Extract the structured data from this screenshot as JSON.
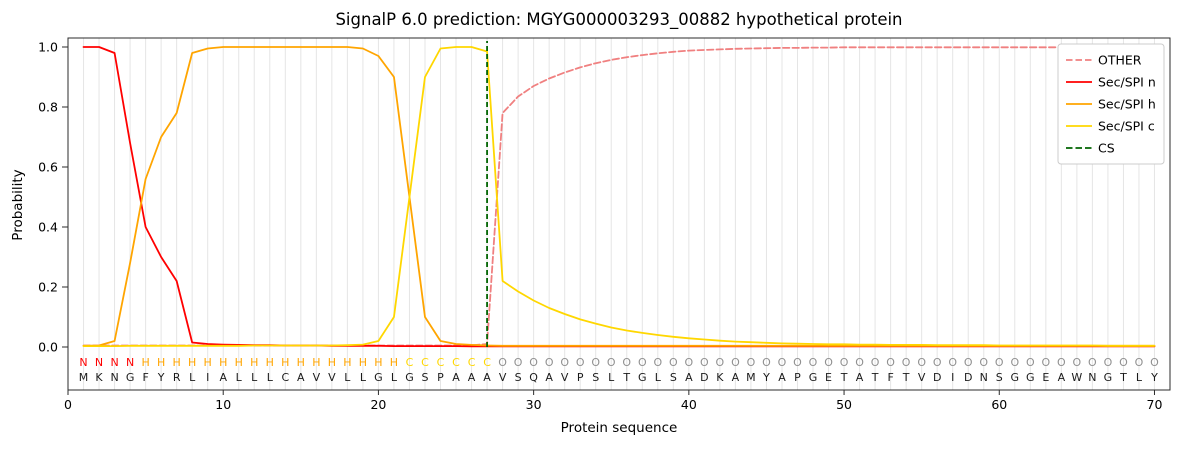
{
  "chart_data": {
    "type": "line",
    "title": "SignalP 6.0 prediction: MGYG000003293_00882 hypothetical protein",
    "xlabel": "Protein sequence",
    "ylabel": "Probability",
    "xlim": [
      0,
      71
    ],
    "ylim": [
      0.0,
      1.0
    ],
    "xticks": [
      0,
      10,
      20,
      30,
      40,
      50,
      60,
      70
    ],
    "yticks": [
      0.0,
      0.2,
      0.4,
      0.6,
      0.8,
      1.0
    ],
    "grid": "vertical line per residue, light gray",
    "legend_position": "upper right",
    "x_start": 1,
    "sequence": "MKNGFYRLIALLLCAVVLLGLGSPAAAVSQAVPSLTGLSADKAMYAPGETATFTVDIDNSGGEAWNGTLY",
    "regions": "NNNNHHHHHHHHHHHHHHHHHCCCCCCOOOOOOOOOOOOOOOOOOOOOOOOOOOOOOOOOOOOOOOOOOO",
    "region_colors": {
      "N": "#ff0000",
      "H": "#ffa500",
      "C": "#ffd700",
      "O": "#909090"
    },
    "sequence_color": "#1a1a1a",
    "grid_color": "#e5e5e5",
    "frame_color": "#2b2b2b",
    "series": [
      {
        "name": "OTHER",
        "color": "#f08080",
        "dash": true,
        "values": [
          0.005,
          0.005,
          0.005,
          0.005,
          0.005,
          0.005,
          0.005,
          0.005,
          0.005,
          0.005,
          0.005,
          0.005,
          0.005,
          0.005,
          0.005,
          0.005,
          0.005,
          0.005,
          0.005,
          0.005,
          0.005,
          0.005,
          0.005,
          0.005,
          0.005,
          0.006,
          0.01,
          0.78,
          0.835,
          0.87,
          0.895,
          0.915,
          0.932,
          0.946,
          0.957,
          0.966,
          0.973,
          0.979,
          0.984,
          0.988,
          0.99,
          0.992,
          0.994,
          0.995,
          0.996,
          0.997,
          0.997,
          0.998,
          0.998,
          0.999,
          0.999,
          0.999,
          0.999,
          0.999,
          0.999,
          0.999,
          0.999,
          0.999,
          0.999,
          0.999,
          0.999,
          0.999,
          0.999,
          0.999,
          0.999,
          0.999,
          0.999,
          0.999,
          0.999,
          0.999
        ]
      },
      {
        "name": "Sec/SPI n",
        "color": "#ff0000",
        "dash": false,
        "values": [
          1.0,
          1.0,
          0.98,
          0.68,
          0.4,
          0.3,
          0.22,
          0.015,
          0.01,
          0.008,
          0.007,
          0.006,
          0.006,
          0.005,
          0.005,
          0.005,
          0.004,
          0.004,
          0.004,
          0.004,
          0.003,
          0.003,
          0.003,
          0.003,
          0.003,
          0.002,
          0.002,
          0.002,
          0.002,
          0.002,
          0.002,
          0.002,
          0.002,
          0.002,
          0.002,
          0.002,
          0.002,
          0.002,
          0.002,
          0.002,
          0.002,
          0.002,
          0.002,
          0.002,
          0.002,
          0.002,
          0.002,
          0.002,
          0.002,
          0.002,
          0.002,
          0.002,
          0.002,
          0.002,
          0.002,
          0.002,
          0.002,
          0.002,
          0.002,
          0.002,
          0.002,
          0.002,
          0.002,
          0.002,
          0.002,
          0.002,
          0.002,
          0.002,
          0.002,
          0.002
        ]
      },
      {
        "name": "Sec/SPI h",
        "color": "#ffa500",
        "dash": false,
        "values": [
          0.004,
          0.005,
          0.02,
          0.28,
          0.56,
          0.7,
          0.78,
          0.98,
          0.995,
          1.0,
          1.0,
          1.0,
          1.0,
          1.0,
          1.0,
          1.0,
          1.0,
          1.0,
          0.995,
          0.97,
          0.9,
          0.5,
          0.1,
          0.02,
          0.01,
          0.007,
          0.005,
          0.004,
          0.004,
          0.004,
          0.004,
          0.004,
          0.004,
          0.004,
          0.004,
          0.004,
          0.004,
          0.004,
          0.004,
          0.004,
          0.004,
          0.004,
          0.004,
          0.004,
          0.004,
          0.004,
          0.004,
          0.004,
          0.004,
          0.004,
          0.004,
          0.004,
          0.004,
          0.004,
          0.004,
          0.004,
          0.004,
          0.004,
          0.004,
          0.004,
          0.004,
          0.004,
          0.004,
          0.004,
          0.004,
          0.004,
          0.004,
          0.004,
          0.004,
          0.004
        ]
      },
      {
        "name": "Sec/SPI c",
        "color": "#ffd700",
        "dash": false,
        "values": [
          0.003,
          0.003,
          0.003,
          0.004,
          0.004,
          0.004,
          0.004,
          0.004,
          0.004,
          0.004,
          0.004,
          0.005,
          0.005,
          0.005,
          0.005,
          0.005,
          0.005,
          0.006,
          0.008,
          0.02,
          0.1,
          0.5,
          0.9,
          0.995,
          1.0,
          1.0,
          0.985,
          0.22,
          0.185,
          0.155,
          0.13,
          0.11,
          0.092,
          0.078,
          0.065,
          0.055,
          0.047,
          0.04,
          0.034,
          0.029,
          0.025,
          0.021,
          0.018,
          0.016,
          0.014,
          0.012,
          0.011,
          0.01,
          0.009,
          0.009,
          0.008,
          0.008,
          0.007,
          0.007,
          0.007,
          0.006,
          0.006,
          0.006,
          0.006,
          0.005,
          0.005,
          0.005,
          0.005,
          0.005,
          0.005,
          0.005,
          0.004,
          0.004,
          0.004,
          0.004
        ]
      },
      {
        "name": "CS",
        "color": "#006400",
        "dash": true,
        "vline": true,
        "x": 27
      }
    ]
  }
}
